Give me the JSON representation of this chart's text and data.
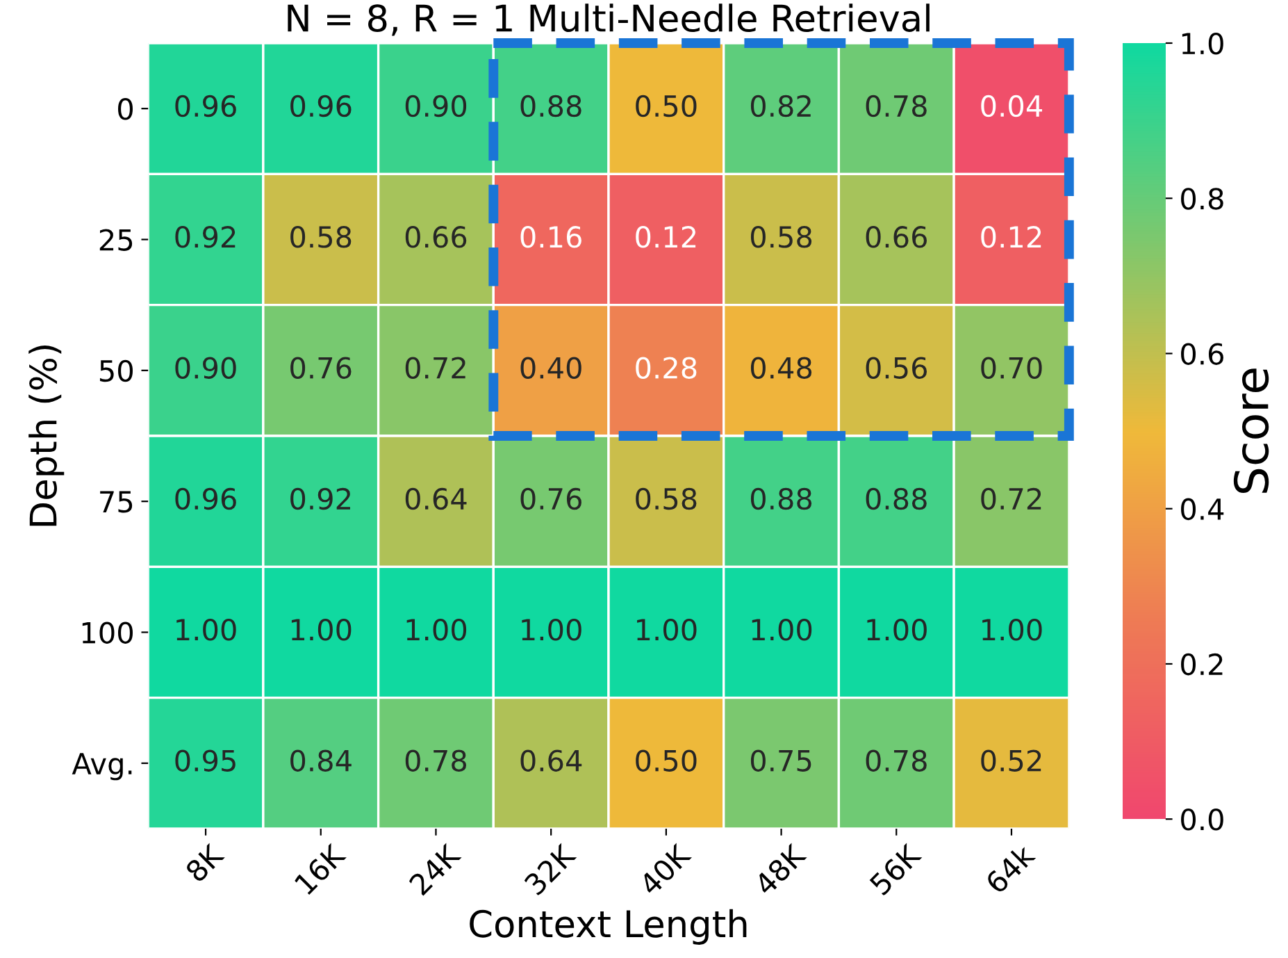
{
  "chart_data": {
    "type": "heatmap",
    "title": "N = 8, R = 1 Multi-Needle Retrieval",
    "xlabel": "Context Length",
    "ylabel": "Depth (%)",
    "clabel": "Score",
    "categories": [
      "8K",
      "16K",
      "24K",
      "32K",
      "40K",
      "48K",
      "56K",
      "64k"
    ],
    "y_categories": [
      "0",
      "25",
      "50",
      "75",
      "100",
      "Avg."
    ],
    "cells": [
      [
        0.96,
        0.96,
        0.9,
        0.88,
        0.5,
        0.82,
        0.78,
        0.04
      ],
      [
        0.92,
        0.58,
        0.66,
        0.16,
        0.12,
        0.58,
        0.66,
        0.12
      ],
      [
        0.9,
        0.76,
        0.72,
        0.4,
        0.28,
        0.48,
        0.56,
        0.7
      ],
      [
        0.96,
        0.92,
        0.64,
        0.76,
        0.58,
        0.88,
        0.88,
        0.72
      ],
      [
        1.0,
        1.0,
        1.0,
        1.0,
        1.0,
        1.0,
        1.0,
        1.0
      ],
      [
        0.95,
        0.84,
        0.78,
        0.64,
        0.5,
        0.75,
        0.78,
        0.52
      ]
    ],
    "cell_labels": [
      [
        "0.96",
        "0.96",
        "0.90",
        "0.88",
        "0.50",
        "0.82",
        "0.78",
        "0.04"
      ],
      [
        "0.92",
        "0.58",
        "0.66",
        "0.16",
        "0.12",
        "0.58",
        "0.66",
        "0.12"
      ],
      [
        "0.90",
        "0.76",
        "0.72",
        "0.40",
        "0.28",
        "0.48",
        "0.56",
        "0.70"
      ],
      [
        "0.96",
        "0.92",
        "0.64",
        "0.76",
        "0.58",
        "0.88",
        "0.88",
        "0.72"
      ],
      [
        "1.00",
        "1.00",
        "1.00",
        "1.00",
        "1.00",
        "1.00",
        "1.00",
        "1.00"
      ],
      [
        "0.95",
        "0.84",
        "0.78",
        "0.64",
        "0.50",
        "0.75",
        "0.78",
        "0.52"
      ]
    ],
    "clim": [
      0,
      1
    ],
    "cticks": [
      {
        "value": 0,
        "label": "0.0"
      },
      {
        "value": 0.2,
        "label": "0.2"
      },
      {
        "value": 0.4,
        "label": "0.4"
      },
      {
        "value": 0.6,
        "label": "0.6"
      },
      {
        "value": 0.8,
        "label": "0.8"
      },
      {
        "value": 1,
        "label": "1.0"
      }
    ]
  }
}
